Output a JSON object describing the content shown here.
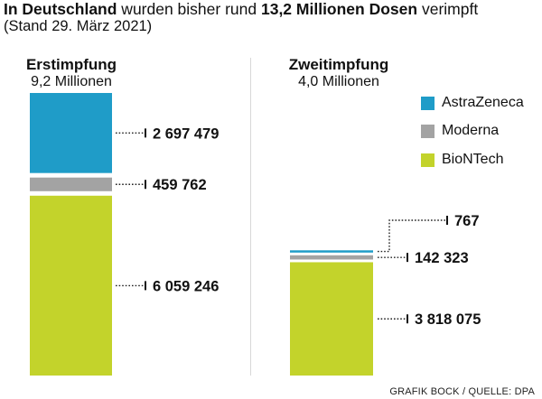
{
  "header": {
    "headline_bold1": "In Deutschland",
    "headline_text1": " wurden bisher rund ",
    "headline_bold2": "13,2 Millionen Dosen",
    "headline_text2": " verimpft",
    "subline": "(Stand 29. März 2021)"
  },
  "groups": [
    {
      "title": "Erstimpfung",
      "subtitle": "9,2 Millionen"
    },
    {
      "title": "Zweitimpfung",
      "subtitle": "4,0 Millionen"
    }
  ],
  "legend": [
    {
      "label": "AstraZeneca",
      "color": "#1f9cc8"
    },
    {
      "label": "Moderna",
      "color": "#a3a3a3"
    },
    {
      "label": "BioNTech",
      "color": "#c3d32b"
    }
  ],
  "chart_data": {
    "type": "bar",
    "stacked": true,
    "categories": [
      "Erstimpfung",
      "Zweitimpfung"
    ],
    "series": [
      {
        "name": "BioNTech",
        "color": "#c3d32b",
        "values": [
          6059246,
          3818075
        ],
        "labels": [
          "6 059 246",
          "3 818 075"
        ]
      },
      {
        "name": "Moderna",
        "color": "#a3a3a3",
        "values": [
          459762,
          142323
        ],
        "labels": [
          "459 762",
          "142 323"
        ]
      },
      {
        "name": "AstraZeneca",
        "color": "#1f9cc8",
        "values": [
          2697479,
          767
        ],
        "labels": [
          "2 697 479",
          "767"
        ]
      }
    ]
  },
  "footer": {
    "source": "GRAFIK BOCK / QUELLE: DPA"
  }
}
